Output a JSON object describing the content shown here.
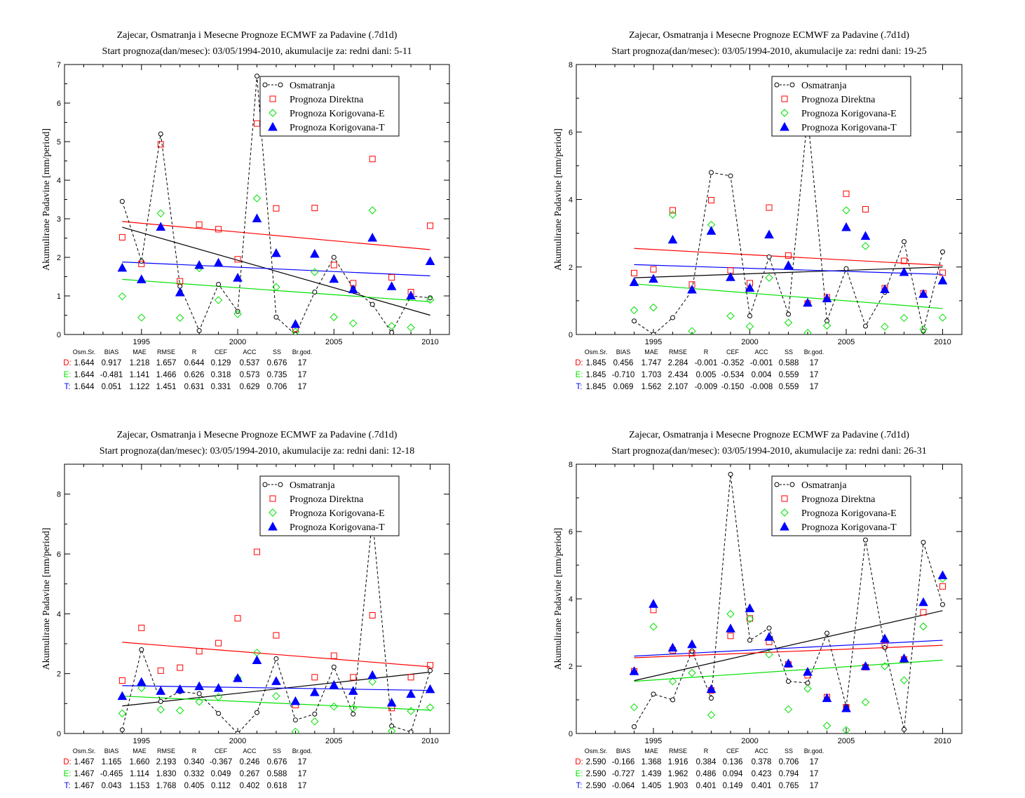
{
  "colors": {
    "obs": "#000000",
    "direct": "#ff0000",
    "corrE": "#00e000",
    "corrT": "#0000ff"
  },
  "legend": [
    "Osmatranja",
    "Prognoza Direktna",
    "Prognoza Korigovana-E",
    "Prognoza Korigovana-T"
  ],
  "stats_header": [
    "Osm.Sr.",
    "BIAS",
    "MAE",
    "RMSE",
    "R",
    "CEF",
    "ACC",
    "SS",
    "Br.god."
  ],
  "chart_data": [
    {
      "type": "scatter",
      "title": "Zajecar, Osmatranja i Mesecne Prognoze ECMWF za Padavine (.7d1d)",
      "subtitle": "Start prognoza(dan/mesec): 03/05/1994-2010, akumulacije za: redni dani: 5-11",
      "ylabel": "Akumulirane Padavine [mm/period]",
      "xlim": [
        1991.0,
        2011.0
      ],
      "ylim": [
        0,
        7
      ],
      "xticks": [
        1995,
        2000,
        2005,
        2010
      ],
      "yticks": [
        0,
        1,
        2,
        3,
        4,
        5,
        6,
        7
      ],
      "x": [
        1994,
        1995,
        1996,
        1997,
        1998,
        1999,
        2000,
        2001,
        2002,
        2003,
        2004,
        2005,
        2006,
        2007,
        2008,
        2009,
        2010
      ],
      "series": [
        {
          "name": "Osmatranja",
          "values": [
            3.45,
            1.9,
            5.2,
            1.25,
            0.1,
            1.3,
            0.6,
            6.7,
            0.45,
            0.0,
            1.1,
            2.0,
            1.2,
            0.78,
            0.05,
            1.0,
            0.95
          ]
        },
        {
          "name": "Prognoza Direktna",
          "values": [
            2.52,
            1.83,
            4.93,
            1.38,
            2.85,
            2.73,
            1.95,
            5.47,
            3.27,
            0.15,
            3.28,
            1.8,
            1.33,
            4.55,
            1.48,
            1.1,
            2.82
          ]
        },
        {
          "name": "Prognoza Korigovana-E",
          "values": [
            0.99,
            0.44,
            3.14,
            0.43,
            1.72,
            0.89,
            0.53,
            3.53,
            1.23,
            0.07,
            1.62,
            0.45,
            0.29,
            3.22,
            0.22,
            0.18,
            0.9
          ]
        },
        {
          "name": "Prognoza Korigovana-T",
          "values": [
            1.73,
            1.43,
            2.79,
            1.09,
            1.8,
            1.86,
            1.47,
            3.01,
            2.11,
            0.27,
            2.09,
            1.44,
            1.17,
            2.51,
            1.25,
            1.01,
            1.9
          ]
        }
      ],
      "trends": [
        {
          "series": "Osmatranja",
          "from": [
            1994,
            2.78
          ],
          "to": [
            2010,
            0.5
          ]
        },
        {
          "series": "Prognoza Direktna",
          "from": [
            1994,
            2.93
          ],
          "to": [
            2010,
            2.2
          ]
        },
        {
          "series": "Prognoza Korigovana-E",
          "from": [
            1994,
            1.43
          ],
          "to": [
            2010,
            0.85
          ]
        },
        {
          "series": "Prognoza Korigovana-T",
          "from": [
            1994,
            1.88
          ],
          "to": [
            2010,
            1.52
          ]
        }
      ],
      "stats": [
        {
          "label": "D:",
          "values": [
            "1.644",
            "0.917",
            "1.218",
            "1.657",
            "0.644",
            "0.129",
            "0.537",
            "0.676",
            "17"
          ]
        },
        {
          "label": "E:",
          "values": [
            "1.644",
            "-0.481",
            "1.141",
            "1.466",
            "0.626",
            "0.318",
            "0.573",
            "0.735",
            "17"
          ]
        },
        {
          "label": "T:",
          "values": [
            "1.644",
            "0.051",
            "1.122",
            "1.451",
            "0.631",
            "0.331",
            "0.629",
            "0.706",
            "17"
          ]
        }
      ]
    },
    {
      "type": "scatter",
      "title": "Zajecar, Osmatranja i Mesecne Prognoze ECMWF za Padavine (.7d1d)",
      "subtitle": "Start prognoza(dan/mesec): 03/05/1994-2010, akumulacije za: redni dani: 19-25",
      "ylabel": "Akumulirane Padavine [mm/period]",
      "xlim": [
        1991.0,
        2011.0
      ],
      "ylim": [
        0,
        8
      ],
      "xticks": [
        1995,
        2000,
        2005,
        2010
      ],
      "yticks": [
        0,
        2,
        4,
        6,
        8
      ],
      "x": [
        1994,
        1995,
        1996,
        1997,
        1998,
        1999,
        2000,
        2001,
        2002,
        2003,
        2004,
        2005,
        2006,
        2007,
        2008,
        2009,
        2010
      ],
      "series": [
        {
          "name": "Osmatranja",
          "values": [
            0.4,
            0.0,
            0.5,
            1.3,
            4.8,
            4.7,
            0.55,
            2.3,
            0.6,
            6.5,
            0.4,
            1.95,
            0.25,
            1.25,
            2.75,
            0.1,
            2.45
          ]
        },
        {
          "name": "Prognoza Direktna",
          "values": [
            1.82,
            1.93,
            3.68,
            1.48,
            3.98,
            1.9,
            1.52,
            3.76,
            2.34,
            0.92,
            1.1,
            4.17,
            3.71,
            1.37,
            2.18,
            1.22,
            1.83
          ]
        },
        {
          "name": "Prognoza Korigovana-E",
          "values": [
            0.72,
            0.8,
            3.55,
            0.1,
            3.25,
            0.55,
            0.24,
            1.68,
            0.35,
            0.05,
            0.26,
            3.68,
            2.62,
            0.23,
            0.49,
            0.15,
            0.5
          ]
        },
        {
          "name": "Prognoza Korigovana-T",
          "values": [
            1.55,
            1.65,
            2.81,
            1.33,
            3.07,
            1.7,
            1.38,
            2.96,
            2.05,
            0.94,
            1.07,
            3.18,
            2.92,
            1.34,
            1.85,
            1.2,
            1.6
          ]
        }
      ],
      "trends": [
        {
          "series": "Osmatranja",
          "from": [
            1994,
            1.68
          ],
          "to": [
            2010,
            2.0
          ]
        },
        {
          "series": "Prognoza Direktna",
          "from": [
            1994,
            2.55
          ],
          "to": [
            2010,
            2.05
          ]
        },
        {
          "series": "Prognoza Korigovana-E",
          "from": [
            1994,
            1.5
          ],
          "to": [
            2010,
            0.77
          ]
        },
        {
          "series": "Prognoza Korigovana-T",
          "from": [
            1994,
            2.07
          ],
          "to": [
            2010,
            1.78
          ]
        }
      ],
      "stats": [
        {
          "label": "D:",
          "values": [
            "1.845",
            "0.456",
            "1.747",
            "2.284",
            "-0.001",
            "-0.352",
            "-0.001",
            "0.588",
            "17"
          ]
        },
        {
          "label": "E:",
          "values": [
            "1.845",
            "-0.710",
            "1.703",
            "2.434",
            "0.005",
            "-0.534",
            "0.004",
            "0.559",
            "17"
          ]
        },
        {
          "label": "T:",
          "values": [
            "1.845",
            "0.069",
            "1.562",
            "2.107",
            "-0.009",
            "-0.150",
            "-0.008",
            "0.559",
            "17"
          ]
        }
      ]
    },
    {
      "type": "scatter",
      "title": "Zajecar, Osmatranja i Mesecne Prognoze ECMWF za Padavine (.7d1d)",
      "subtitle": "Start prognoza(dan/mesec): 03/05/1994-2010, akumulacije za: redni dani: 12-18",
      "ylabel": "Akumulirane Padavine [mm/period]",
      "xlim": [
        1991.0,
        2011.0
      ],
      "ylim": [
        0,
        9
      ],
      "xticks": [
        1995,
        2000,
        2005,
        2010
      ],
      "yticks": [
        0,
        2,
        4,
        6,
        8
      ],
      "x": [
        1994,
        1995,
        1996,
        1997,
        1998,
        1999,
        2000,
        2001,
        2002,
        2003,
        2004,
        2005,
        2006,
        2007,
        2008,
        2009,
        2010
      ],
      "series": [
        {
          "name": "Osmatranja",
          "values": [
            0.12,
            2.8,
            1.07,
            1.4,
            1.33,
            0.67,
            0.0,
            0.7,
            2.5,
            0.45,
            0.65,
            2.22,
            0.65,
            7.2,
            0.25,
            0.05,
            2.1
          ]
        },
        {
          "name": "Prognoza Direktna",
          "values": [
            1.77,
            3.53,
            2.1,
            2.2,
            2.75,
            3.02,
            3.85,
            6.07,
            3.28,
            0.95,
            1.88,
            2.6,
            1.88,
            3.95,
            0.85,
            1.88,
            2.28
          ]
        },
        {
          "name": "Prognoza Korigovana-E",
          "values": [
            0.67,
            1.52,
            0.8,
            0.77,
            1.06,
            1.22,
            1.85,
            2.7,
            1.25,
            0.06,
            0.4,
            0.9,
            0.85,
            1.73,
            0.08,
            0.75,
            0.87
          ]
        },
        {
          "name": "Prognoza Korigovana-T",
          "values": [
            1.25,
            1.72,
            1.42,
            1.48,
            1.58,
            1.52,
            1.85,
            2.45,
            1.75,
            1.08,
            1.38,
            1.62,
            1.42,
            1.95,
            1.03,
            1.32,
            1.48
          ]
        }
      ],
      "trends": [
        {
          "series": "Osmatranja",
          "from": [
            1994,
            0.92
          ],
          "to": [
            2010,
            2.05
          ]
        },
        {
          "series": "Prognoza Direktna",
          "from": [
            1994,
            3.05
          ],
          "to": [
            2010,
            2.23
          ]
        },
        {
          "series": "Prognoza Korigovana-E",
          "from": [
            1994,
            1.25
          ],
          "to": [
            2010,
            0.78
          ]
        },
        {
          "series": "Prognoza Korigovana-T",
          "from": [
            1994,
            1.6
          ],
          "to": [
            2010,
            1.44
          ]
        }
      ],
      "stats": [
        {
          "label": "D:",
          "values": [
            "1.467",
            "1.165",
            "1.660",
            "2.193",
            "0.340",
            "-0.367",
            "0.246",
            "0.676",
            "17"
          ]
        },
        {
          "label": "E:",
          "values": [
            "1.467",
            "-0.465",
            "1.114",
            "1.830",
            "0.332",
            "0.049",
            "0.267",
            "0.588",
            "17"
          ]
        },
        {
          "label": "T:",
          "values": [
            "1.467",
            "0.043",
            "1.153",
            "1.768",
            "0.405",
            "0.112",
            "0.402",
            "0.618",
            "17"
          ]
        }
      ]
    },
    {
      "type": "scatter",
      "title": "Zajecar, Osmatranja i Mesecne Prognoze ECMWF za Padavine (.7d1d)",
      "subtitle": "Start prognoza(dan/mesec): 03/05/1994-2010, akumulacije za: redni dani: 26-31",
      "ylabel": "Akumulirane Padavine [mm/period]",
      "xlim": [
        1991.0,
        2011.0
      ],
      "ylim": [
        0,
        8
      ],
      "xticks": [
        1995,
        2000,
        2005,
        2010
      ],
      "yticks": [
        0,
        2,
        4,
        6,
        8
      ],
      "x": [
        1994,
        1995,
        1996,
        1997,
        1998,
        1999,
        2000,
        2001,
        2002,
        2003,
        2004,
        2005,
        2006,
        2007,
        2008,
        2009,
        2010
      ],
      "series": [
        {
          "name": "Osmatranja",
          "values": [
            0.2,
            1.17,
            1.0,
            2.45,
            1.05,
            7.7,
            2.77,
            3.13,
            1.55,
            1.5,
            2.98,
            0.8,
            5.75,
            2.55,
            0.12,
            5.68,
            3.83
          ]
        },
        {
          "name": "Prognoza Direktna",
          "values": [
            1.85,
            3.67,
            2.47,
            2.38,
            1.28,
            2.9,
            3.42,
            2.72,
            2.05,
            1.73,
            1.08,
            0.78,
            1.97,
            2.62,
            2.2,
            3.6,
            4.37
          ]
        },
        {
          "name": "Prognoza Korigovana-E",
          "values": [
            0.78,
            3.17,
            1.55,
            1.8,
            0.55,
            3.55,
            3.4,
            2.35,
            0.72,
            1.33,
            0.23,
            0.1,
            0.93,
            2.0,
            1.58,
            3.18,
            4.6
          ]
        },
        {
          "name": "Prognoza Korigovana-T",
          "values": [
            1.85,
            3.85,
            2.55,
            2.65,
            1.32,
            3.12,
            3.72,
            2.87,
            2.08,
            1.83,
            1.05,
            0.75,
            2.0,
            2.82,
            2.23,
            3.9,
            4.7
          ]
        }
      ],
      "trends": [
        {
          "series": "Osmatranja",
          "from": [
            1994,
            1.57
          ],
          "to": [
            2010,
            3.65
          ]
        },
        {
          "series": "Prognoza Direktna",
          "from": [
            1994,
            2.25
          ],
          "to": [
            2010,
            2.62
          ]
        },
        {
          "series": "Prognoza Korigovana-E",
          "from": [
            1994,
            1.55
          ],
          "to": [
            2010,
            2.18
          ]
        },
        {
          "series": "Prognoza Korigovana-T",
          "from": [
            1994,
            2.3
          ],
          "to": [
            2010,
            2.77
          ]
        }
      ],
      "stats": [
        {
          "label": "D:",
          "values": [
            "2.590",
            "-0.166",
            "1.368",
            "1.916",
            "0.384",
            "0.136",
            "0.378",
            "0.706",
            "17"
          ]
        },
        {
          "label": "E:",
          "values": [
            "2.590",
            "-0.727",
            "1.439",
            "1.962",
            "0.486",
            "0.094",
            "0.423",
            "0.794",
            "17"
          ]
        },
        {
          "label": "T:",
          "values": [
            "2.590",
            "-0.064",
            "1.405",
            "1.903",
            "0.401",
            "0.149",
            "0.401",
            "0.765",
            "17"
          ]
        }
      ]
    }
  ]
}
